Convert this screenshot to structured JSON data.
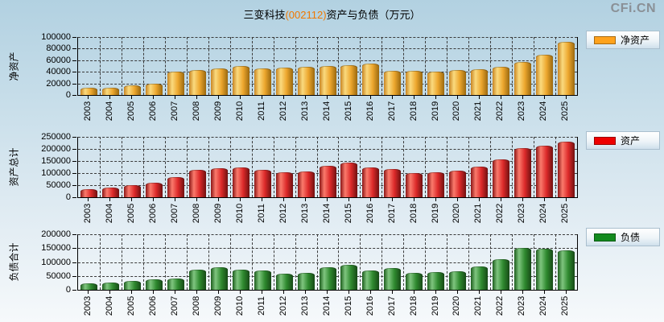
{
  "page": {
    "title": {
      "prefix": "三变科技",
      "code": "(002112)",
      "suffix": "资产与负债（万元）"
    },
    "watermark": "CFi.CN"
  },
  "colors": {
    "title_code": "#f07800",
    "grid": "#3a3a3a",
    "axis": "#000000",
    "background_top": "#b2d1e1",
    "background_bottom": "#f6f9fb",
    "net_assets_legend": "#ffa21c",
    "assets_legend": "#ee0000",
    "liabilities_legend": "#128a1e"
  },
  "chart_data": [
    {
      "type": "bar",
      "title": "净资产",
      "axis_label": "净资产",
      "legend": "净资产",
      "legend_color": "#ffa21c",
      "bar_gradient": [
        "#c98522",
        "#fada7e",
        "#eda72e",
        "#9a680f"
      ],
      "categories": [
        2003,
        2004,
        2005,
        2006,
        2007,
        2008,
        2009,
        2010,
        2011,
        2012,
        2013,
        2014,
        2015,
        2016,
        2017,
        2018,
        2019,
        2020,
        2021,
        2022,
        2023,
        2024,
        2025
      ],
      "values": [
        13000,
        12500,
        16000,
        20000,
        40500,
        42500,
        45500,
        50000,
        46500,
        47500,
        49000,
        50000,
        51500,
        53500,
        41000,
        41000,
        40000,
        43000,
        45000,
        48000,
        56500,
        69500,
        91000
      ],
      "ylim": [
        0,
        100000
      ],
      "ytick_step": 20000,
      "grid": true,
      "legend_position": "right"
    },
    {
      "type": "bar",
      "title": "资产",
      "axis_label": "资产总计",
      "legend": "资产",
      "legend_color": "#ee0000",
      "bar_gradient": [
        "#8c1616",
        "#fa7a6c",
        "#dd2a2a",
        "#701010"
      ],
      "categories": [
        2003,
        2004,
        2005,
        2006,
        2007,
        2008,
        2009,
        2010,
        2011,
        2012,
        2013,
        2014,
        2015,
        2016,
        2017,
        2018,
        2019,
        2020,
        2021,
        2022,
        2023,
        2024,
        2025
      ],
      "values": [
        33000,
        39000,
        49000,
        59000,
        83000,
        113000,
        121000,
        122000,
        113000,
        103000,
        107000,
        130000,
        142000,
        123000,
        118000,
        100000,
        103000,
        110000,
        127000,
        157000,
        203000,
        215000,
        230000
      ],
      "ylim": [
        0,
        250000
      ],
      "ytick_step": 50000,
      "grid": true,
      "legend_position": "right"
    },
    {
      "type": "bar",
      "title": "负债",
      "axis_label": "负债合计",
      "legend": "负债",
      "legend_color": "#128a1e",
      "bar_gradient": [
        "#1d5e1d",
        "#7fc57f",
        "#2f8a2f",
        "#164916"
      ],
      "categories": [
        2003,
        2004,
        2005,
        2006,
        2007,
        2008,
        2009,
        2010,
        2011,
        2012,
        2013,
        2014,
        2015,
        2016,
        2017,
        2018,
        2019,
        2020,
        2021,
        2022,
        2023,
        2024,
        2025
      ],
      "values": [
        22000,
        27000,
        33000,
        37000,
        42000,
        72000,
        80000,
        73000,
        70000,
        58000,
        62000,
        82000,
        91000,
        70000,
        78000,
        60000,
        63000,
        68000,
        83000,
        111000,
        150000,
        147000,
        141000
      ],
      "ylim": [
        0,
        200000
      ],
      "ytick_step": 50000,
      "grid": true,
      "legend_position": "right"
    }
  ]
}
